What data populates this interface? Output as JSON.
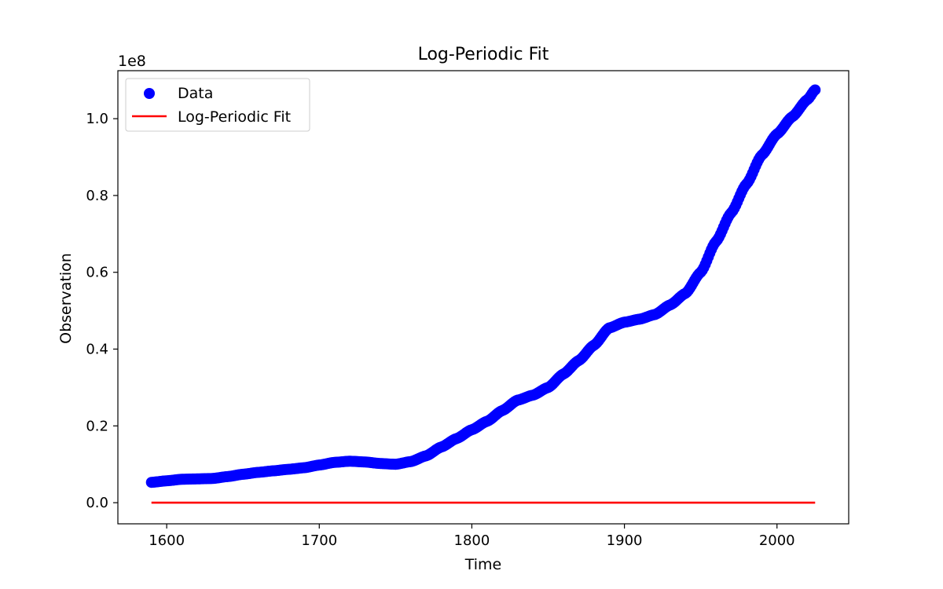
{
  "chart_data": {
    "type": "scatter",
    "title": "Log-Periodic Fit",
    "xlabel": "Time",
    "ylabel": "Observation",
    "y_offset_label": "1e8",
    "xlim": [
      1568,
      2047
    ],
    "ylim": [
      -0.055,
      1.125
    ],
    "y_scale_factor": 100000000,
    "x_ticks": [
      1600,
      1700,
      1800,
      1900,
      2000
    ],
    "x_tick_labels": [
      "1600",
      "1700",
      "1800",
      "1900",
      "2000"
    ],
    "y_ticks": [
      0.0,
      0.2,
      0.4,
      0.6,
      0.8,
      1.0
    ],
    "y_tick_labels": [
      "0.0",
      "0.2",
      "0.4",
      "0.6",
      "0.8",
      "1.0"
    ],
    "grid": false,
    "legend_position": "upper-left",
    "series": [
      {
        "name": "Data",
        "kind": "scatter",
        "color": "#0000ff",
        "x_range": [
          1590,
          2025
        ],
        "x_step": 1,
        "anchor_points": [
          [
            1590,
            0.053
          ],
          [
            1600,
            0.057
          ],
          [
            1610,
            0.061
          ],
          [
            1620,
            0.062
          ],
          [
            1630,
            0.063
          ],
          [
            1640,
            0.068
          ],
          [
            1650,
            0.074
          ],
          [
            1660,
            0.079
          ],
          [
            1670,
            0.083
          ],
          [
            1680,
            0.087
          ],
          [
            1690,
            0.091
          ],
          [
            1700,
            0.098
          ],
          [
            1710,
            0.105
          ],
          [
            1720,
            0.108
          ],
          [
            1730,
            0.106
          ],
          [
            1740,
            0.102
          ],
          [
            1750,
            0.1
          ],
          [
            1760,
            0.107
          ],
          [
            1770,
            0.122
          ],
          [
            1780,
            0.145
          ],
          [
            1790,
            0.167
          ],
          [
            1800,
            0.19
          ],
          [
            1810,
            0.212
          ],
          [
            1820,
            0.24
          ],
          [
            1830,
            0.267
          ],
          [
            1840,
            0.28
          ],
          [
            1850,
            0.3
          ],
          [
            1860,
            0.335
          ],
          [
            1870,
            0.37
          ],
          [
            1880,
            0.41
          ],
          [
            1890,
            0.455
          ],
          [
            1900,
            0.47
          ],
          [
            1910,
            0.478
          ],
          [
            1920,
            0.49
          ],
          [
            1930,
            0.515
          ],
          [
            1940,
            0.545
          ],
          [
            1950,
            0.6
          ],
          [
            1960,
            0.68
          ],
          [
            1970,
            0.755
          ],
          [
            1980,
            0.83
          ],
          [
            1990,
            0.905
          ],
          [
            2000,
            0.96
          ],
          [
            2010,
            1.005
          ],
          [
            2020,
            1.05
          ],
          [
            2025,
            1.075
          ]
        ]
      },
      {
        "name": "Log-Periodic Fit",
        "kind": "line",
        "color": "#ff0000",
        "points": [
          [
            1590,
            0.0
          ],
          [
            2025,
            0.0
          ]
        ]
      }
    ]
  }
}
